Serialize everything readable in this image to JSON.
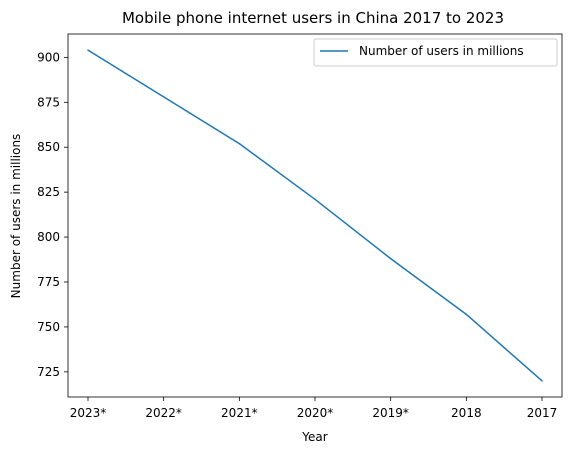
{
  "chart_data": {
    "type": "line",
    "title": "Mobile phone internet users in China 2017 to 2023",
    "xlabel": "Year",
    "ylabel": "Number of users in millions",
    "categories": [
      "2023*",
      "2022*",
      "2021*",
      "2020*",
      "2019*",
      "2018",
      "2017"
    ],
    "series": [
      {
        "name": "Number of users in millions",
        "values": [
          904,
          878,
          852,
          821,
          788,
          757,
          720
        ],
        "color": "#1f77b4"
      }
    ],
    "ylim": [
      711,
      913
    ],
    "yticks": [
      725,
      750,
      775,
      800,
      825,
      850,
      875,
      900
    ],
    "grid": false,
    "legend_position": "top-right"
  }
}
